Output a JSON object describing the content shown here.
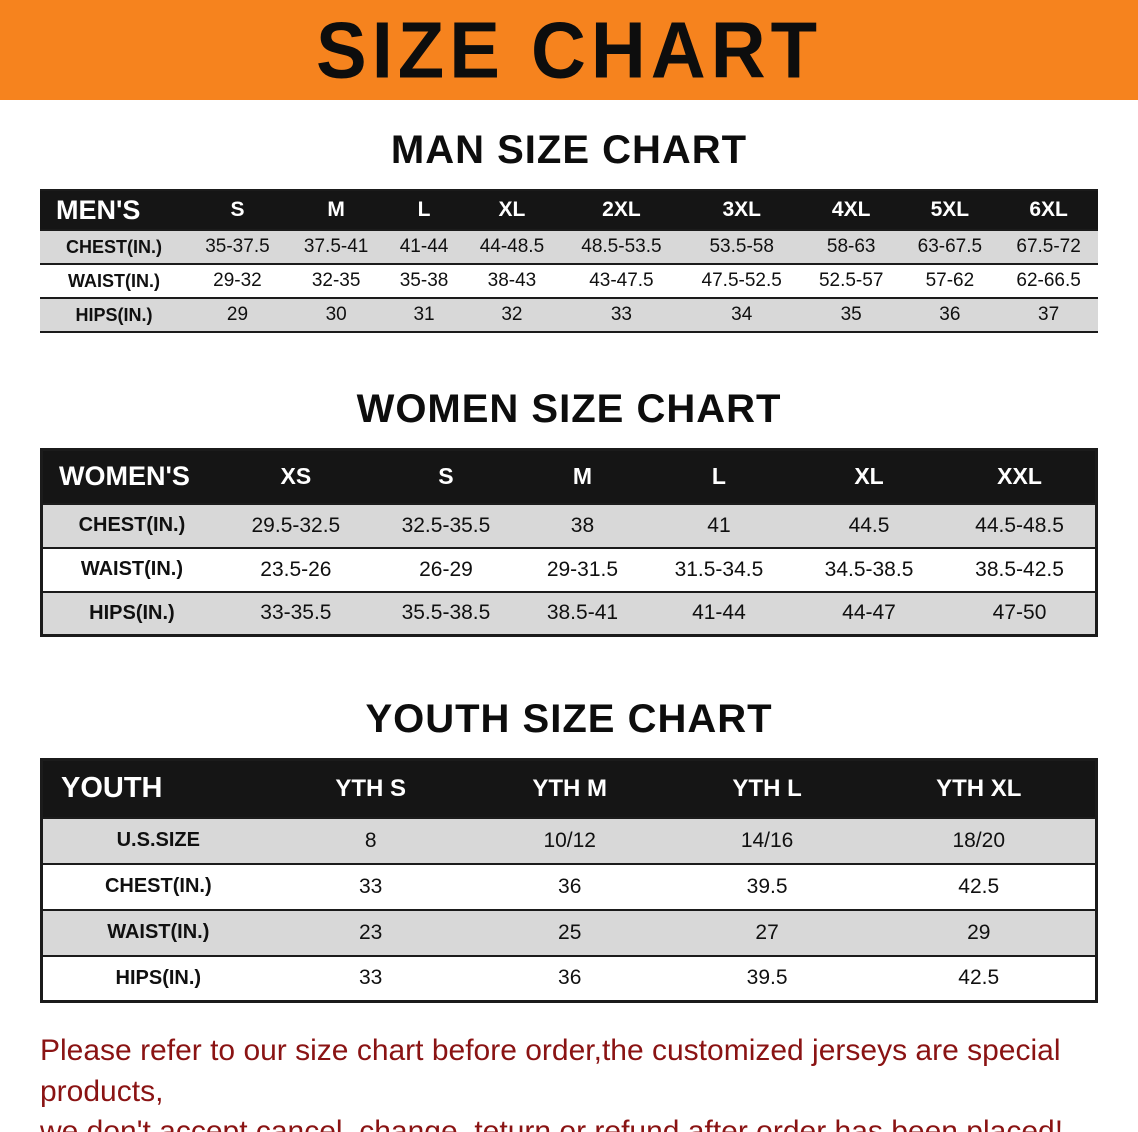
{
  "banner": {
    "title": "SIZE CHART"
  },
  "colors": {
    "banner_bg": "#f6831e",
    "header_bg": "#151515",
    "stripe": "#d8d8d8",
    "note_color": "#8a1313"
  },
  "sections": [
    {
      "heading": "MAN SIZE CHART",
      "table": {
        "header": [
          "MEN'S",
          "S",
          "M",
          "L",
          "XL",
          "2XL",
          "3XL",
          "4XL",
          "5XL",
          "6XL"
        ],
        "rows": [
          [
            "CHEST(IN.)",
            "35-37.5",
            "37.5-41",
            "41-44",
            "44-48.5",
            "48.5-53.5",
            "53.5-58",
            "58-63",
            "63-67.5",
            "67.5-72"
          ],
          [
            "WAIST(IN.)",
            "29-32",
            "32-35",
            "35-38",
            "38-43",
            "43-47.5",
            "47.5-52.5",
            "52.5-57",
            "57-62",
            "62-66.5"
          ],
          [
            "HIPS(IN.)",
            "29",
            "30",
            "31",
            "32",
            "33",
            "34",
            "35",
            "36",
            "37"
          ]
        ]
      }
    },
    {
      "heading": "WOMEN SIZE CHART",
      "table": {
        "header": [
          "WOMEN'S",
          "XS",
          "S",
          "M",
          "L",
          "XL",
          "XXL"
        ],
        "rows": [
          [
            "CHEST(IN.)",
            "29.5-32.5",
            "32.5-35.5",
            "38",
            "41",
            "44.5",
            "44.5-48.5"
          ],
          [
            "WAIST(IN.)",
            "23.5-26",
            "26-29",
            "29-31.5",
            "31.5-34.5",
            "34.5-38.5",
            "38.5-42.5"
          ],
          [
            "HIPS(IN.)",
            "33-35.5",
            "35.5-38.5",
            "38.5-41",
            "41-44",
            "44-47",
            "47-50"
          ]
        ]
      }
    },
    {
      "heading": "YOUTH SIZE CHART",
      "table": {
        "header": [
          "YOUTH",
          "YTH S",
          "YTH M",
          "YTH L",
          "YTH XL"
        ],
        "rows": [
          [
            "U.S.SIZE",
            "8",
            "10/12",
            "14/16",
            "18/20"
          ],
          [
            "CHEST(IN.)",
            "33",
            "36",
            "39.5",
            "42.5"
          ],
          [
            "WAIST(IN.)",
            "23",
            "25",
            "27",
            "29"
          ],
          [
            "HIPS(IN.)",
            "33",
            "36",
            "39.5",
            "42.5"
          ]
        ]
      }
    }
  ],
  "footer": {
    "line1": "Please refer to our size chart before order,the customized jerseys are special products,",
    "line2": "we don't accept cancel, change, teturn or refund after order has been placed!"
  }
}
